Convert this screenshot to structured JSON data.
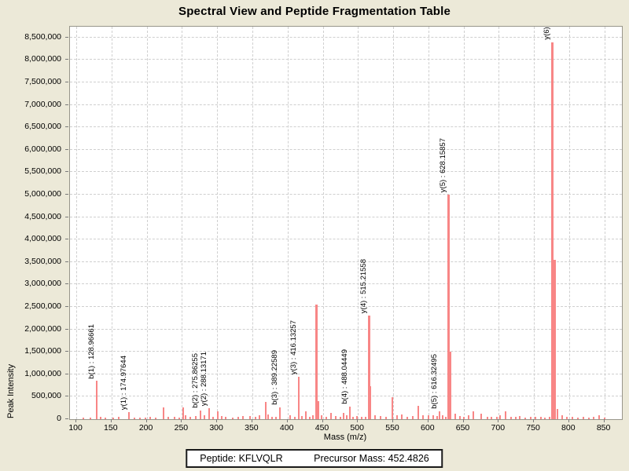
{
  "footer": {
    "peptide": "Peptide: KFLVQLR",
    "precursor": "Precursor Mass: 452.4826"
  },
  "chart_data": {
    "type": "bar",
    "subtype": "mass-spectrum",
    "title": "Spectral View and Peptide Fragmentation Table",
    "xlabel": "Mass (m/z)",
    "ylabel": "Peak Intensity",
    "grid": true,
    "legend": false,
    "peak_color": "#f88686",
    "xlim": [
      91,
      875
    ],
    "ylim": [
      0,
      8740000
    ],
    "x_ticks": [
      100,
      150,
      200,
      250,
      300,
      350,
      400,
      450,
      500,
      550,
      600,
      650,
      700,
      750,
      800,
      850
    ],
    "y_ticks": [
      {
        "value": 0,
        "label": "0"
      },
      {
        "value": 500000,
        "label": "500,000"
      },
      {
        "value": 1000000,
        "label": "1,000,000"
      },
      {
        "value": 1500000,
        "label": "1,500,000"
      },
      {
        "value": 2000000,
        "label": "2,000,000"
      },
      {
        "value": 2500000,
        "label": "2,500,000"
      },
      {
        "value": 3000000,
        "label": "3,000,000"
      },
      {
        "value": 3500000,
        "label": "3,500,000"
      },
      {
        "value": 4000000,
        "label": "4,000,000"
      },
      {
        "value": 4500000,
        "label": "4,500,000"
      },
      {
        "value": 5000000,
        "label": "5,000,000"
      },
      {
        "value": 5500000,
        "label": "5,500,000"
      },
      {
        "value": 6000000,
        "label": "6,000,000"
      },
      {
        "value": 6500000,
        "label": "6,500,000"
      },
      {
        "value": 7000000,
        "label": "7,000,000"
      },
      {
        "value": 7500000,
        "label": "7,500,000"
      },
      {
        "value": 8000000,
        "label": "8,000,000"
      },
      {
        "value": 8500000,
        "label": "8,500,000"
      }
    ],
    "fragments": [
      {
        "ion": "b1",
        "mz": 128.96661,
        "intensity": 850000,
        "label": "b(1) : 128.96661"
      },
      {
        "ion": "y1",
        "mz": 174.97644,
        "intensity": 160000,
        "label": "y(1) : 174.97644"
      },
      {
        "ion": "b2",
        "mz": 275.86255,
        "intensity": 200000,
        "label": "b(2) : 275.86255"
      },
      {
        "ion": "y2",
        "mz": 288.13171,
        "intensity": 250000,
        "label": "y(2) : 288.13171"
      },
      {
        "ion": "b3",
        "mz": 389.22589,
        "intensity": 260000,
        "label": "b(3) : 389.22589"
      },
      {
        "ion": "y3",
        "mz": 416.13257,
        "intensity": 950000,
        "label": "y(3) : 416.13257"
      },
      {
        "ion": "b4",
        "mz": 488.04449,
        "intensity": 280000,
        "label": "b(4) : 488.04449"
      },
      {
        "ion": "y4",
        "mz": 515.21558,
        "intensity": 2300000,
        "label": "y(4) : 515.21558"
      },
      {
        "ion": "b5",
        "mz": 616.32495,
        "intensity": 175000,
        "label": "b(5) : 616.32495"
      },
      {
        "ion": "y5",
        "mz": 628.15857,
        "intensity": 5000000,
        "label": "y(5) : 628.15857"
      },
      {
        "ion": "y6",
        "mz": 775.4,
        "intensity": 8400000,
        "label": "y(6) :"
      }
    ],
    "noise": [
      [
        110,
        30000
      ],
      [
        120,
        40000
      ],
      [
        135,
        50000
      ],
      [
        141,
        30000
      ],
      [
        152,
        40000
      ],
      [
        160,
        60000
      ],
      [
        183,
        40000
      ],
      [
        190,
        40000
      ],
      [
        198,
        30000
      ],
      [
        205,
        50000
      ],
      [
        213,
        40000
      ],
      [
        224,
        270000
      ],
      [
        230,
        60000
      ],
      [
        240,
        50000
      ],
      [
        246,
        40000
      ],
      [
        251.5,
        270000
      ],
      [
        255,
        90000
      ],
      [
        262,
        60000
      ],
      [
        270,
        70000
      ],
      [
        282,
        80000
      ],
      [
        294,
        50000
      ],
      [
        301,
        180000
      ],
      [
        306,
        70000
      ],
      [
        312,
        50000
      ],
      [
        322,
        40000
      ],
      [
        330,
        60000
      ],
      [
        337,
        70000
      ],
      [
        347,
        70000
      ],
      [
        355,
        60000
      ],
      [
        360,
        90000
      ],
      [
        369,
        390000
      ],
      [
        372,
        100000
      ],
      [
        378,
        60000
      ],
      [
        384,
        50000
      ],
      [
        404,
        80000
      ],
      [
        410,
        60000
      ],
      [
        420,
        70000
      ],
      [
        426,
        175000
      ],
      [
        432,
        60000
      ],
      [
        436,
        80000
      ],
      [
        441,
        2550000
      ],
      [
        443.8,
        400000
      ],
      [
        448,
        90000
      ],
      [
        455,
        60000
      ],
      [
        462,
        140000
      ],
      [
        468,
        70000
      ],
      [
        475,
        60000
      ],
      [
        480,
        140000
      ],
      [
        484,
        90000
      ],
      [
        493,
        60000
      ],
      [
        499,
        70000
      ],
      [
        505,
        60000
      ],
      [
        511,
        50000
      ],
      [
        518,
        730000
      ],
      [
        524,
        90000
      ],
      [
        532,
        70000
      ],
      [
        540,
        60000
      ],
      [
        549,
        490000
      ],
      [
        556,
        80000
      ],
      [
        562,
        100000
      ],
      [
        570,
        60000
      ],
      [
        578,
        70000
      ],
      [
        586,
        300000
      ],
      [
        592,
        80000
      ],
      [
        600,
        80000
      ],
      [
        607,
        90000
      ],
      [
        613,
        70000
      ],
      [
        620,
        80000
      ],
      [
        625,
        60000
      ],
      [
        632,
        1500000
      ],
      [
        638,
        120000
      ],
      [
        645,
        70000
      ],
      [
        650,
        60000
      ],
      [
        657,
        80000
      ],
      [
        664,
        175000
      ],
      [
        675,
        115000
      ],
      [
        684,
        60000
      ],
      [
        690,
        50000
      ],
      [
        697,
        60000
      ],
      [
        702,
        80000
      ],
      [
        710,
        175000
      ],
      [
        718,
        60000
      ],
      [
        724,
        50000
      ],
      [
        730,
        70000
      ],
      [
        738,
        40000
      ],
      [
        745,
        50000
      ],
      [
        752,
        60000
      ],
      [
        760,
        50000
      ],
      [
        766,
        40000
      ],
      [
        772,
        60000
      ],
      [
        778.6,
        3550000
      ],
      [
        783,
        230000
      ],
      [
        790,
        80000
      ],
      [
        797,
        50000
      ],
      [
        805,
        60000
      ],
      [
        812,
        40000
      ],
      [
        820,
        50000
      ],
      [
        828,
        40000
      ],
      [
        835,
        50000
      ],
      [
        842,
        80000
      ],
      [
        850,
        40000
      ]
    ]
  }
}
